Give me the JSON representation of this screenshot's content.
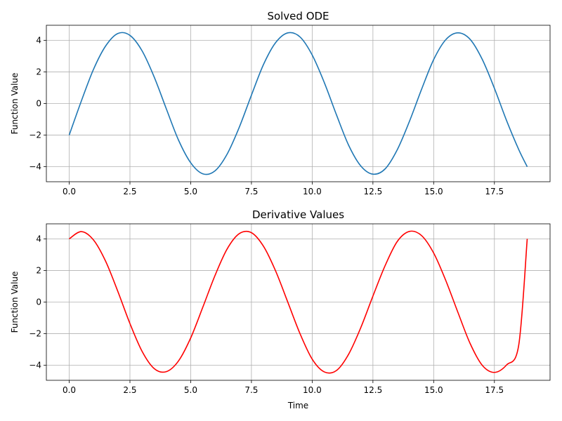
{
  "chart_data": [
    {
      "type": "line",
      "title": "Solved ODE",
      "xlabel": "",
      "ylabel": "Function Value",
      "xlim": [
        -0.94,
        19.79
      ],
      "ylim": [
        -4.95,
        4.95
      ],
      "xticks": [
        0.0,
        2.5,
        5.0,
        7.5,
        10.0,
        12.5,
        15.0,
        17.5
      ],
      "xtick_labels": [
        "0.0",
        "2.5",
        "5.0",
        "7.5",
        "10.0",
        "12.5",
        "15.0",
        "17.5"
      ],
      "yticks": [
        -4,
        -2,
        0,
        2,
        4
      ],
      "ytick_labels": [
        "−4",
        "−2",
        "0",
        "2",
        "4"
      ],
      "grid": true,
      "series": [
        {
          "color": "#1f77b4",
          "x": [
            0.0,
            0.5,
            1.0,
            1.5,
            2.0,
            2.5,
            3.0,
            3.5,
            4.0,
            4.5,
            5.0,
            5.5,
            6.0,
            6.5,
            7.0,
            7.5,
            8.0,
            8.5,
            9.0,
            9.5,
            10.0,
            10.5,
            11.0,
            11.5,
            12.0,
            12.5,
            13.0,
            13.5,
            14.0,
            14.5,
            15.0,
            15.5,
            16.0,
            16.5,
            17.0,
            17.5,
            18.0,
            18.5,
            18.85
          ],
          "y": [
            -2.0,
            0.16,
            2.16,
            3.64,
            4.43,
            4.31,
            3.33,
            1.67,
            -0.35,
            -2.32,
            -3.75,
            -4.45,
            -4.26,
            -3.2,
            -1.5,
            0.53,
            2.48,
            3.86,
            4.47,
            4.21,
            3.07,
            1.32,
            -0.72,
            -2.64,
            -3.95,
            -4.47,
            -4.14,
            -2.93,
            -1.14,
            0.89,
            2.78,
            4.04,
            4.47,
            4.06,
            2.79,
            0.96,
            -1.08,
            -2.91,
            -4.0
          ]
        }
      ]
    },
    {
      "type": "line",
      "title": "Derivative Values",
      "xlabel": "Time",
      "ylabel": "Function Value",
      "xlim": [
        -0.94,
        19.79
      ],
      "ylim": [
        -4.95,
        4.95
      ],
      "xticks": [
        0.0,
        2.5,
        5.0,
        7.5,
        10.0,
        12.5,
        15.0,
        17.5
      ],
      "xtick_labels": [
        "0.0",
        "2.5",
        "5.0",
        "7.5",
        "10.0",
        "12.5",
        "15.0",
        "17.5"
      ],
      "yticks": [
        -4,
        -2,
        0,
        2,
        4
      ],
      "ytick_labels": [
        "−4",
        "−2",
        "0",
        "2",
        "4"
      ],
      "grid": true,
      "series": [
        {
          "color": "#ff0000",
          "x": [
            0.0,
            0.5,
            1.0,
            1.5,
            2.0,
            2.5,
            3.0,
            3.5,
            4.0,
            4.5,
            5.0,
            5.5,
            6.0,
            6.5,
            7.0,
            7.5,
            8.0,
            8.5,
            9.0,
            9.5,
            10.0,
            10.5,
            11.0,
            11.5,
            12.0,
            12.5,
            13.0,
            13.5,
            14.0,
            14.5,
            15.0,
            15.5,
            16.0,
            16.5,
            17.0,
            17.5,
            18.0,
            18.5,
            18.85
          ],
          "y": [
            4.0,
            4.46,
            3.93,
            2.58,
            0.68,
            -1.36,
            -3.12,
            -4.21,
            -4.4,
            -3.72,
            -2.27,
            -0.32,
            1.68,
            3.36,
            4.33,
            4.39,
            3.52,
            1.95,
            -0.02,
            -2.0,
            -3.61,
            -4.42,
            -4.33,
            -3.3,
            -1.62,
            0.38,
            2.3,
            3.83,
            4.47,
            4.21,
            3.1,
            1.36,
            -0.66,
            -2.62,
            -4.0,
            -4.45,
            -3.98,
            -2.73,
            4.0
          ]
        }
      ]
    }
  ]
}
